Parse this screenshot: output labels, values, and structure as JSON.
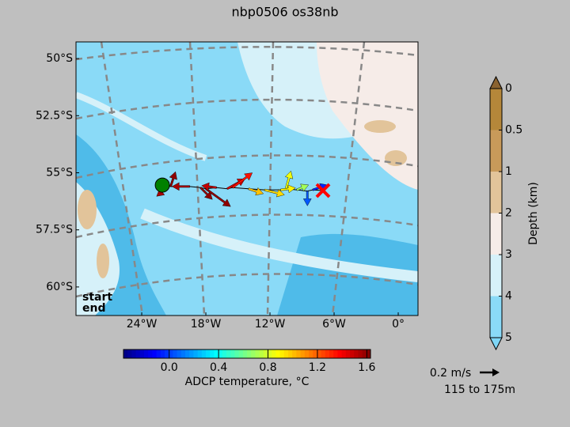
{
  "title": "nbp0506 os38nb",
  "map": {
    "xlim": [
      -30.15,
      1.85
    ],
    "ylim": [
      -61.25,
      -49.27
    ],
    "xticks": [
      {
        "value": -24,
        "label": "24°W"
      },
      {
        "value": -18,
        "label": "18°W"
      },
      {
        "value": -12,
        "label": "12°W"
      },
      {
        "value": -6,
        "label": "6°W"
      },
      {
        "value": 0,
        "label": "0°"
      }
    ],
    "yticks": [
      {
        "value": -50,
        "label": "50°S"
      },
      {
        "value": -52.5,
        "label": "52.5°S"
      },
      {
        "value": -55,
        "label": "55°S"
      },
      {
        "value": -57.5,
        "label": "57.5°S"
      },
      {
        "value": -60,
        "label": "60°S"
      }
    ],
    "start": {
      "lon": -22.07,
      "lat": -55.54,
      "label": "start",
      "color": "#008000"
    },
    "end": {
      "lon": -7.04,
      "lat": -55.78,
      "label": "end",
      "color": "#ff0000"
    },
    "vectors": [
      {
        "lon": -21.5,
        "lat": -55.6,
        "u": -0.12,
        "v": -0.1,
        "temp": 1.55
      },
      {
        "lon": -21.3,
        "lat": -55.6,
        "u": 0.05,
        "v": 0.15,
        "temp": 1.6
      },
      {
        "lon": -19.5,
        "lat": -55.6,
        "u": -0.18,
        "v": 0.0,
        "temp": 1.55
      },
      {
        "lon": -18.5,
        "lat": -55.65,
        "u": 0.12,
        "v": -0.12,
        "temp": 1.6
      },
      {
        "lon": -18,
        "lat": -55.7,
        "u": 0.25,
        "v": -0.18,
        "temp": 1.6
      },
      {
        "lon": -17,
        "lat": -55.65,
        "u": -0.15,
        "v": 0.02,
        "temp": 1.5
      },
      {
        "lon": -16,
        "lat": -55.7,
        "u": 0.18,
        "v": 0.1,
        "temp": 1.45
      },
      {
        "lon": -15.5,
        "lat": -55.65,
        "u": 0.2,
        "v": 0.15,
        "temp": 1.35
      },
      {
        "lon": -14,
        "lat": -55.7,
        "u": 0.15,
        "v": -0.05,
        "temp": 1.0
      },
      {
        "lon": -12.5,
        "lat": -55.75,
        "u": 0.2,
        "v": -0.05,
        "temp": 0.95
      },
      {
        "lon": -11,
        "lat": -55.75,
        "u": 0.15,
        "v": 0.02,
        "temp": 0.9
      },
      {
        "lon": -10.5,
        "lat": -55.7,
        "u": 0.05,
        "v": 0.18,
        "temp": 0.85
      },
      {
        "lon": -9.5,
        "lat": -55.75,
        "u": 0.12,
        "v": 0.05,
        "temp": 0.7
      },
      {
        "lon": -8.5,
        "lat": -55.8,
        "u": 0.0,
        "v": -0.15,
        "temp": 0.05
      },
      {
        "lon": -8,
        "lat": -55.75,
        "u": 0.15,
        "v": 0.05,
        "temp": -0.05
      }
    ]
  },
  "temperature_bar": {
    "label": "ADCP temperature, °C",
    "clim": [
      -0.37,
      1.63
    ],
    "ticks": [
      {
        "value": 0,
        "label": "0.0"
      },
      0.4,
      0.8,
      1.2,
      1.6
    ]
  },
  "depth_bar": {
    "label": "Depth (km)",
    "levels": [
      0,
      0.5,
      1,
      2,
      3,
      4,
      5
    ],
    "colors": [
      "#b5873a",
      "#c89a5a",
      "#e2c49a",
      "#f6ece8",
      "#d6f1f9",
      "#8adaf7"
    ],
    "over_color": "#8a6330",
    "under_color": "#7fd6f6"
  },
  "scale": {
    "value": 0.2,
    "label": "0.2 m/s",
    "depth_range": "115 to 175m"
  }
}
